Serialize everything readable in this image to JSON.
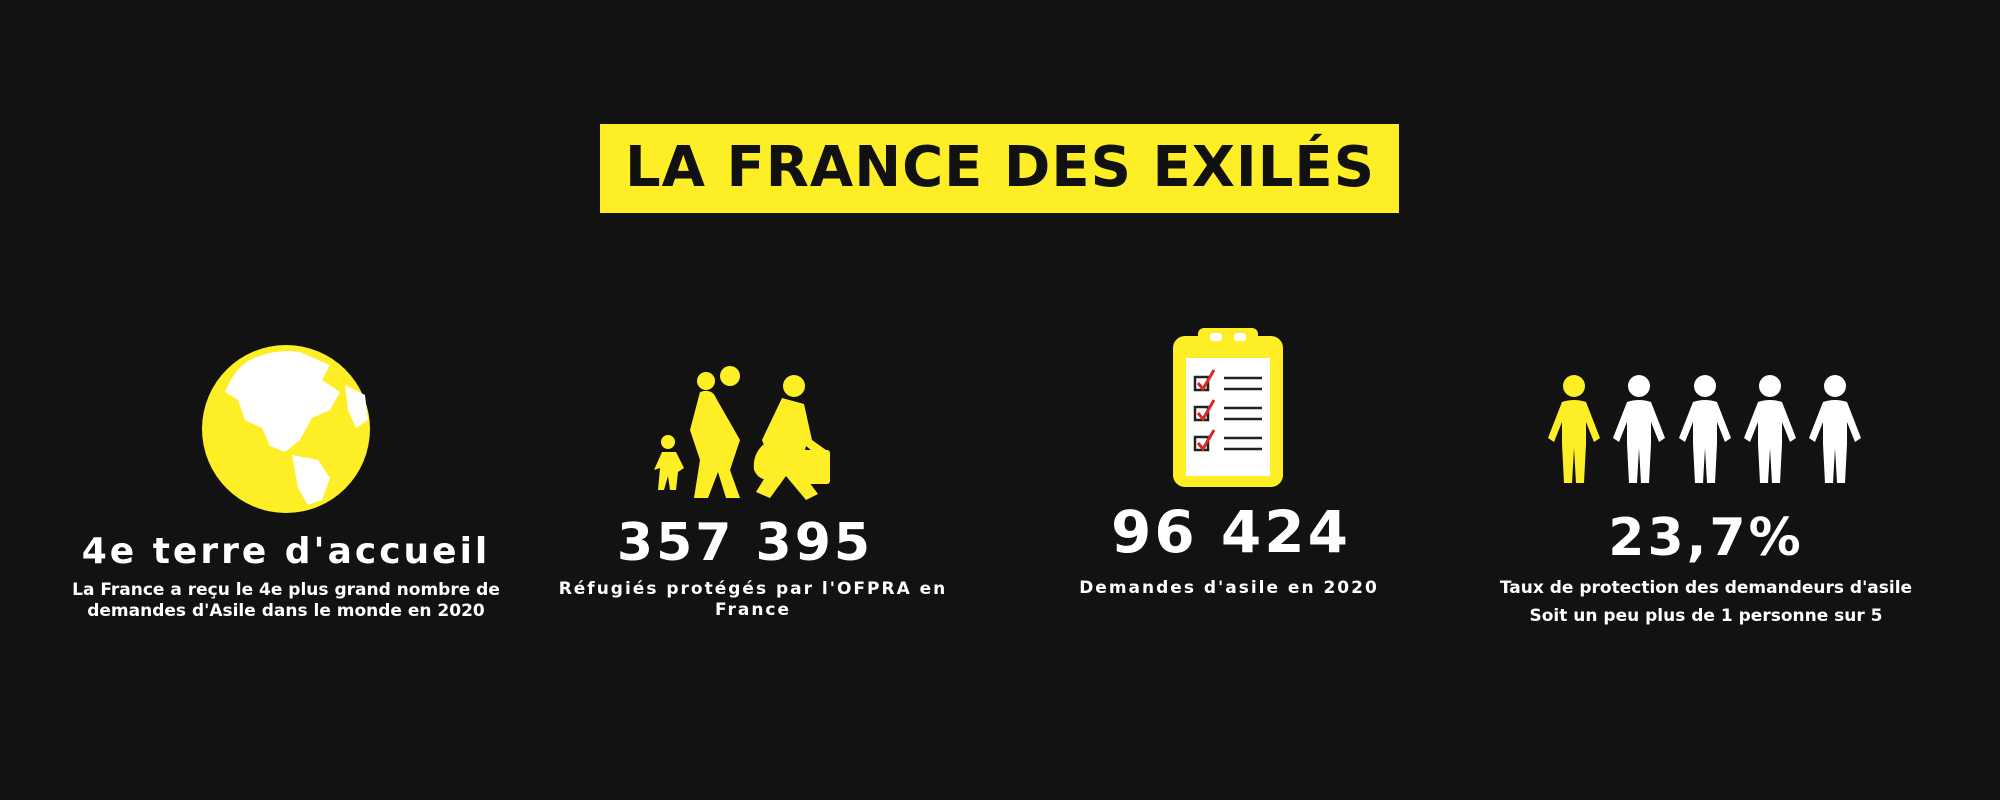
{
  "title": "LA FRANCE DES EXILÉS",
  "stats": [
    {
      "value": "4e terre d'accueil",
      "lines": [
        "La France a reçu le 4e plus grand nombre de",
        "demandes d'Asile dans le monde en 2020"
      ]
    },
    {
      "value": "357 395",
      "lines": [
        "Réfugiés protégés par l'OFPRA en",
        "France"
      ]
    },
    {
      "value": "96 424",
      "lines": [
        "Demandes d'asile en 2020"
      ]
    },
    {
      "value": "23,7%",
      "lines": [
        "Taux de protection des demandeurs d'asile",
        "Soit un peu plus de 1 personne sur 5"
      ]
    }
  ]
}
